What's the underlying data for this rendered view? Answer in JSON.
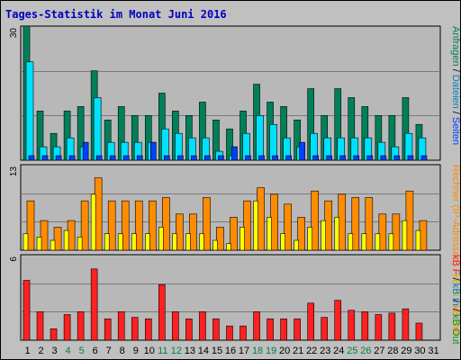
{
  "chart_title": "Tages-Statistik im Monat Juni 2016",
  "colors": {
    "background": "#c0c0c0",
    "title": "#0000c0",
    "hits": "#00805a",
    "files": "#00e0ff",
    "pages": "#0040ff",
    "kb_in": "#ffe800",
    "kb_out": "#ff8c00",
    "kb_f": "#ff2020",
    "weekend_day": "#008040",
    "normal_day": "#000000"
  },
  "chart_data": {
    "type": "bar",
    "categories": [
      "1",
      "2",
      "3",
      "4",
      "5",
      "6",
      "7",
      "8",
      "9",
      "10",
      "11",
      "12",
      "13",
      "14",
      "15",
      "16",
      "17",
      "18",
      "19",
      "20",
      "21",
      "22",
      "23",
      "24",
      "25",
      "26",
      "27",
      "28",
      "29",
      "30",
      "31"
    ],
    "weekend_days": [
      "4",
      "5",
      "11",
      "12",
      "18",
      "19",
      "25",
      "26"
    ],
    "panels": [
      {
        "id": "requests",
        "ymax_label": "30",
        "ylim": [
          0,
          30
        ],
        "legend_parts": [
          {
            "text": "Anfragen",
            "color": "#00805a"
          },
          {
            "text": " / ",
            "color": "#000000"
          },
          {
            "text": "Dateien",
            "color": "#0080c0"
          },
          {
            "text": " / ",
            "color": "#000000"
          },
          {
            "text": "Seiten",
            "color": "#0040ff"
          }
        ],
        "series": [
          {
            "name": "Anfragen",
            "color": "#00805a",
            "values": [
              30,
              11,
              6,
              11,
              12,
              20,
              9,
              12,
              10,
              10,
              15,
              11,
              10,
              13,
              9,
              7,
              11,
              17,
              13,
              12,
              9,
              16,
              10,
              16,
              14,
              12,
              10,
              10,
              14,
              8,
              0
            ]
          },
          {
            "name": "Dateien",
            "color": "#00e0ff",
            "values": [
              22,
              3,
              3,
              5,
              3,
              14,
              4,
              4,
              4,
              4,
              7,
              6,
              5,
              5,
              2,
              1,
              6,
              10,
              8,
              5,
              3,
              6,
              5,
              5,
              5,
              5,
              4,
              3,
              6,
              5,
              0
            ]
          },
          {
            "name": "Seiten",
            "color": "#0040ff",
            "values": [
              1,
              1,
              1,
              1,
              4,
              1,
              1,
              1,
              1,
              4,
              1,
              1,
              1,
              1,
              1,
              3,
              1,
              1,
              1,
              1,
              4,
              1,
              1,
              1,
              1,
              1,
              1,
              1,
              1,
              1,
              0
            ]
          }
        ]
      },
      {
        "id": "volume",
        "ymax_label": "13",
        "ylim": [
          0,
          13
        ],
        "legend_parts": [
          {
            "text": "kB In",
            "color": "#e0b000"
          },
          {
            "text": " / ",
            "color": "#000000"
          },
          {
            "text": "kB Out",
            "color": "#ff8c00"
          }
        ],
        "legend_prefix": "Rechner (IP-Adressen)",
        "series": [
          {
            "name": "kB Out",
            "color": "#ff8c00",
            "values": [
              7.5,
              4.5,
              3.5,
              4.5,
              7.5,
              11,
              7.5,
              7.5,
              7.5,
              7.5,
              8,
              5.5,
              5.5,
              8,
              3.5,
              5,
              7.5,
              9.5,
              8.5,
              7,
              5,
              9,
              7.5,
              8.5,
              8,
              8,
              5.5,
              5.5,
              9,
              4.5,
              0
            ]
          },
          {
            "name": "kB In",
            "color": "#ffff00",
            "values": [
              2.5,
              2,
              1.5,
              3,
              2,
              8.5,
              2.5,
              2.5,
              2.5,
              2.5,
              3.5,
              2.5,
              2.5,
              2.5,
              1.5,
              1,
              3.5,
              7.5,
              5,
              2.5,
              1.5,
              3.5,
              4.5,
              5,
              2.5,
              2.5,
              2.5,
              2.5,
              4.5,
              3,
              0
            ]
          }
        ]
      },
      {
        "id": "hosts",
        "ymax_label": "6",
        "ylim": [
          0,
          6
        ],
        "legend_parts": [
          {
            "text": "kB F",
            "color": "#ff2020"
          },
          {
            "text": " / ",
            "color": "#000000"
          },
          {
            "text": "kB In",
            "color": "#0080c0"
          },
          {
            "text": " / ",
            "color": "#000000"
          },
          {
            "text": "kB Out",
            "color": "#00a000"
          }
        ],
        "series": [
          {
            "name": "kB F",
            "color": "#ff2020",
            "values": [
              4.2,
              2.0,
              0.8,
              1.8,
              2.0,
              5.0,
              1.5,
              2.0,
              1.6,
              1.5,
              3.9,
              2.0,
              1.5,
              2.0,
              1.5,
              1.0,
              1.0,
              2.0,
              1.5,
              1.5,
              1.5,
              2.6,
              1.6,
              2.8,
              2.1,
              2.0,
              1.8,
              1.9,
              2.2,
              1.2,
              0
            ]
          }
        ]
      }
    ]
  }
}
